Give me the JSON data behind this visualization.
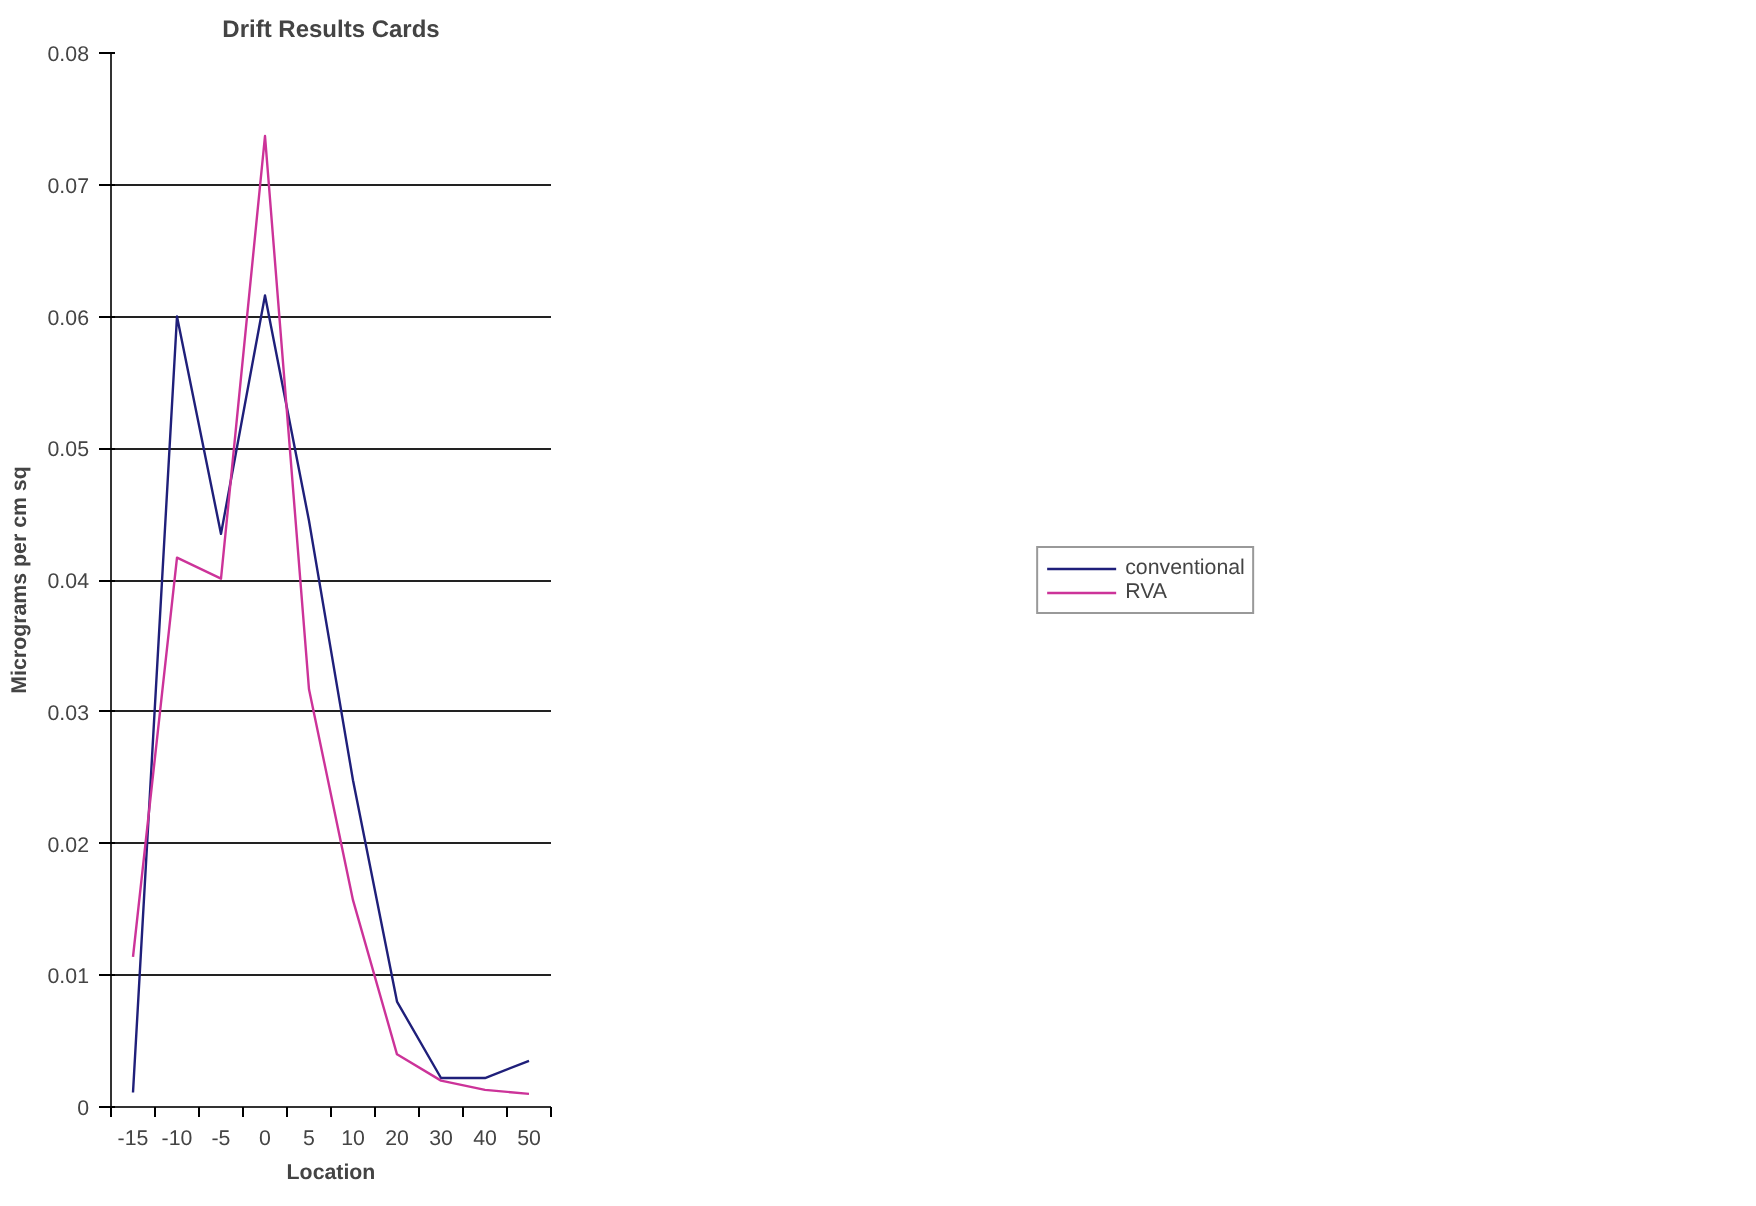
{
  "chart_data": {
    "type": "line",
    "title": "Drift Results Cards",
    "xlabel": "Location",
    "ylabel": "Micrograms per cm sq",
    "categories": [
      "-15",
      "-10",
      "-5",
      "0",
      "5",
      "10",
      "20",
      "30",
      "40",
      "50"
    ],
    "series": [
      {
        "name": "conventional",
        "color": "#1f1f7a",
        "values": [
          0.0011,
          0.06,
          0.0435,
          0.0616,
          0.0445,
          0.0248,
          0.008,
          0.0022,
          0.0022,
          0.0035
        ]
      },
      {
        "name": "RVA",
        "color": "#cc3399",
        "values": [
          0.0114,
          0.0417,
          0.0401,
          0.0737,
          0.0317,
          0.0157,
          0.004,
          0.002,
          0.0013,
          0.001
        ]
      }
    ],
    "ylim": [
      0,
      0.08
    ],
    "yticks": [
      0,
      0.01,
      0.02,
      0.03,
      0.04,
      0.05,
      0.06,
      0.07,
      0.08
    ],
    "grid": "y",
    "legend": "right",
    "marker": "none",
    "line_style": "solid"
  }
}
